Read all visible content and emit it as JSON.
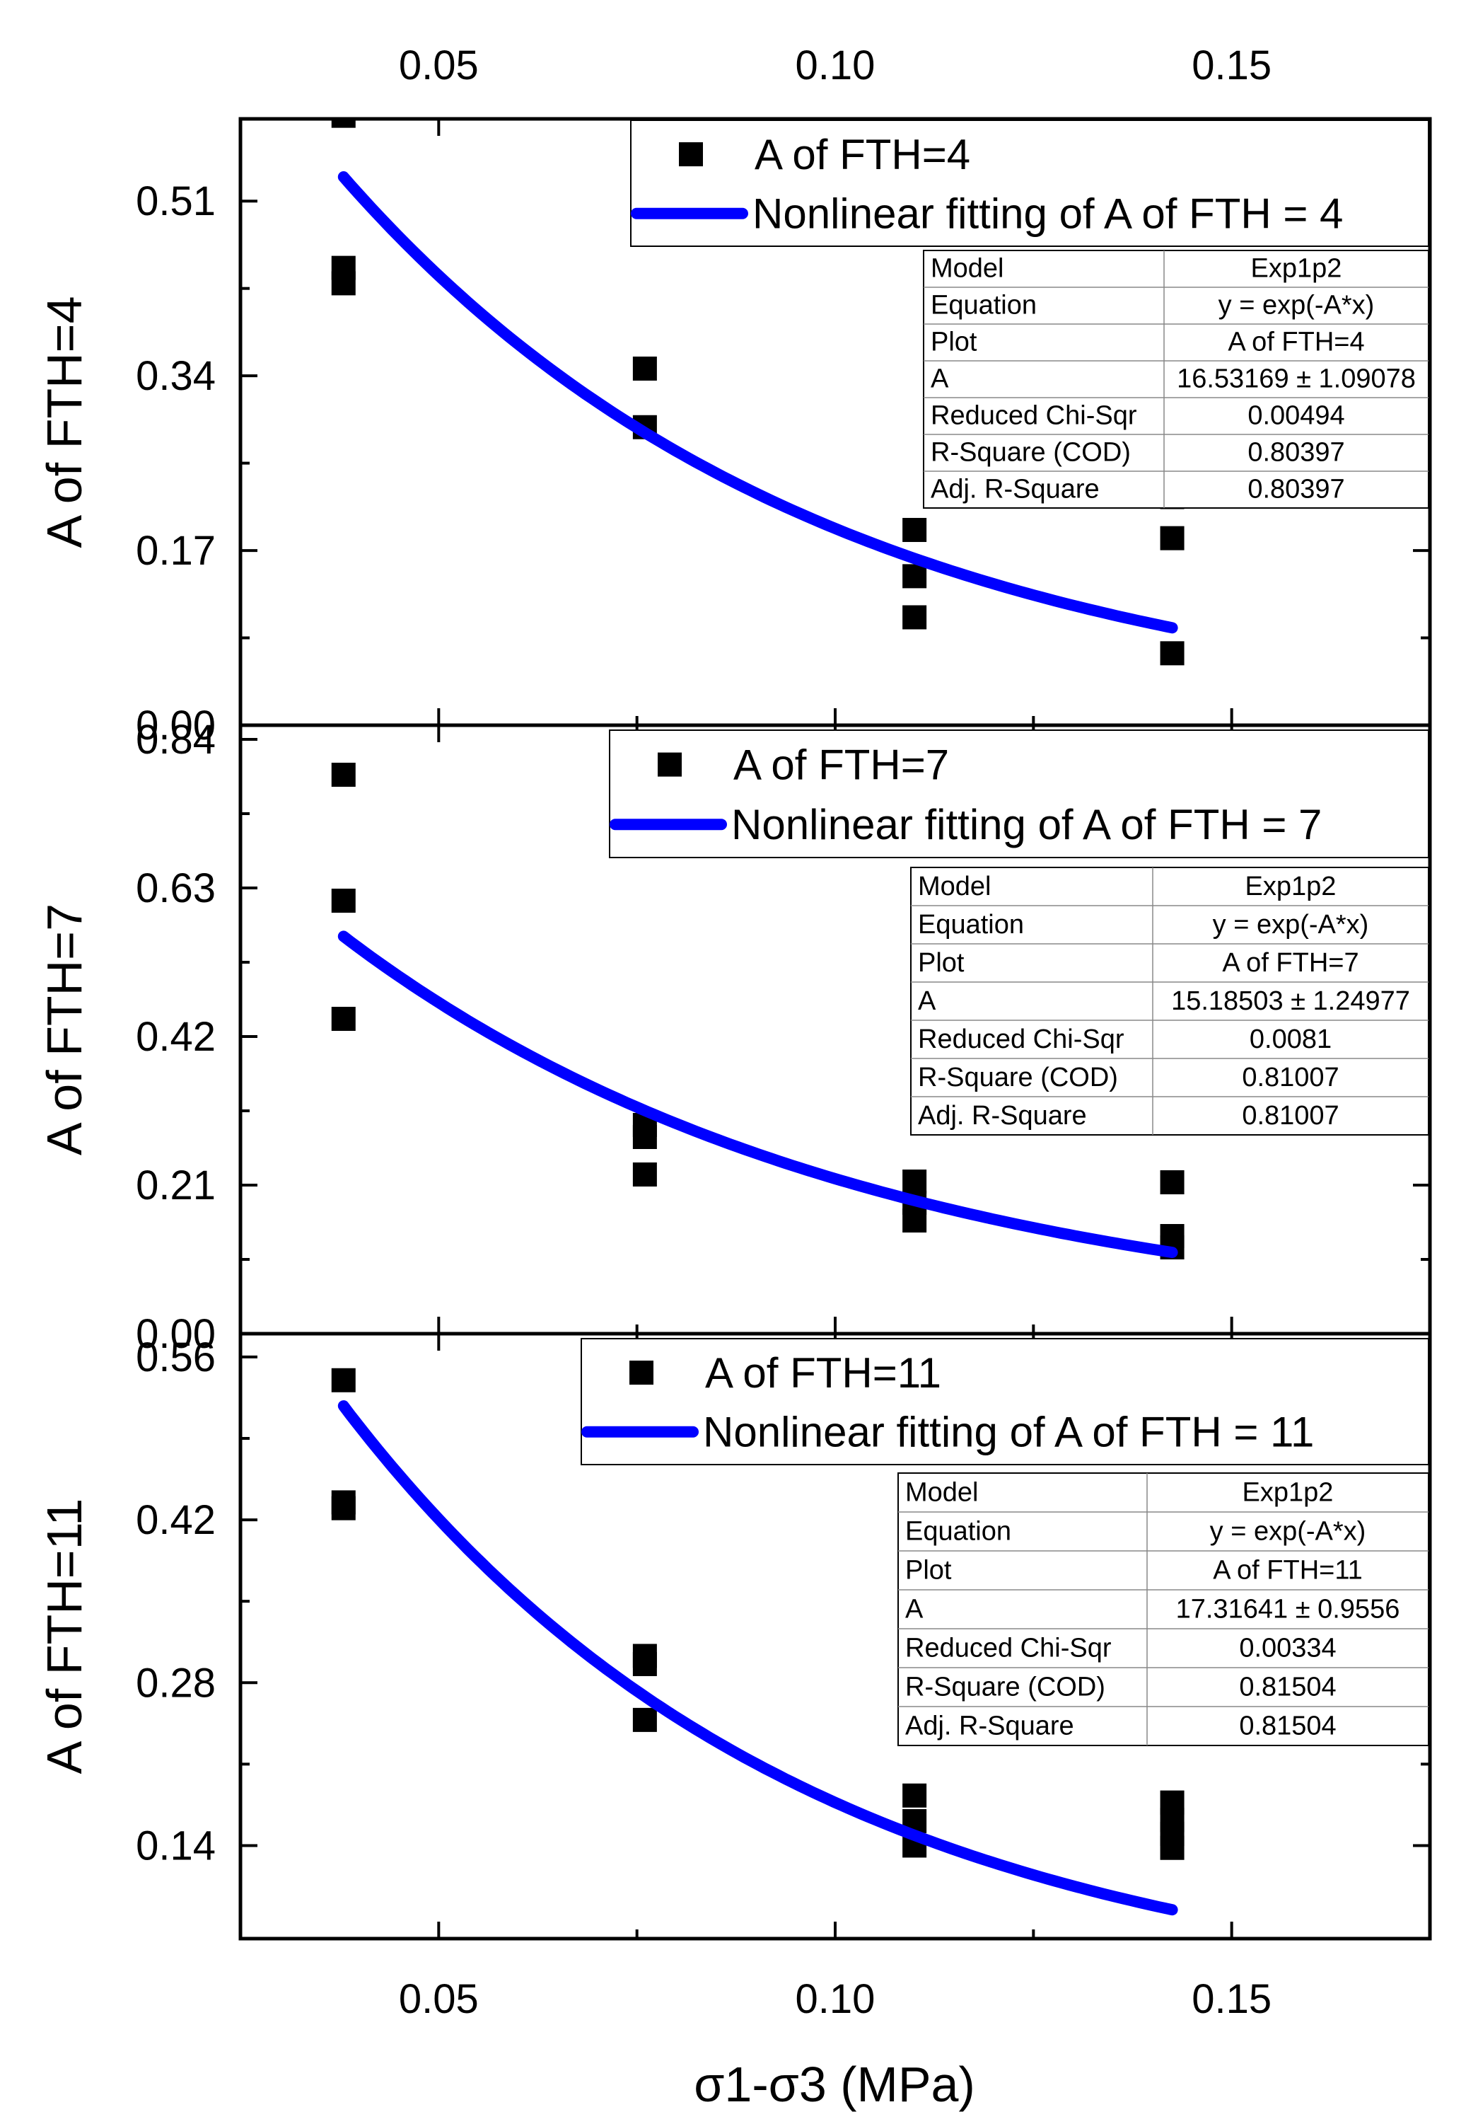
{
  "chart_data": {
    "type": "scatter",
    "x_axis": {
      "label": "σ1-σ3 (MPa)",
      "range": [
        0.025,
        0.175
      ],
      "ticks": [
        "0.05",
        "0.10",
        "0.15"
      ],
      "tick_values": [
        0.05,
        0.1,
        0.15
      ],
      "top_ticks": [
        "0.05",
        "0.10",
        "0.15"
      ]
    },
    "panels": [
      {
        "ylabel": "A of FTH=4",
        "ylim": [
          0,
          0.59
        ],
        "y_ticks": [
          "0.00",
          "0.17",
          "0.34",
          "0.51"
        ],
        "y_tick_values": [
          0,
          0.17,
          0.34,
          0.51
        ],
        "series": [
          {
            "name": "A of FTH=4",
            "kind": "scatter",
            "marker": "square",
            "color": "#000000",
            "points": [
              [
                0.038,
                0.593
              ],
              [
                0.038,
                0.445
              ],
              [
                0.038,
                0.43
              ],
              [
                0.076,
                0.347
              ],
              [
                0.076,
                0.29
              ],
              [
                0.11,
                0.19
              ],
              [
                0.11,
                0.145
              ],
              [
                0.11,
                0.105
              ],
              [
                0.1425,
                0.222
              ],
              [
                0.1425,
                0.182
              ],
              [
                0.1425,
                0.07
              ]
            ]
          },
          {
            "name": "Nonlinear fitting of A of FTH = 4",
            "kind": "fit",
            "color": "#0000ff",
            "A": 16.53169,
            "x_range": [
              0.038,
              0.1425
            ]
          }
        ],
        "stats_table": [
          [
            "Model",
            "Exp1p2"
          ],
          [
            "Equation",
            "y = exp(-A*x)"
          ],
          [
            "Plot",
            "A of FTH=4"
          ],
          [
            "A",
            "16.53169 ± 1.09078"
          ],
          [
            "Reduced Chi-Sqr",
            "0.00494"
          ],
          [
            "R-Square (COD)",
            "0.80397"
          ],
          [
            "Adj. R-Square",
            "0.80397"
          ]
        ]
      },
      {
        "ylabel": "A of FTH=7",
        "ylim": [
          0,
          0.86
        ],
        "y_ticks": [
          "0.00",
          "0.21",
          "0.42",
          "0.63",
          "0.84"
        ],
        "y_tick_values": [
          0,
          0.21,
          0.42,
          0.63,
          0.84
        ],
        "series": [
          {
            "name": "A of FTH=7",
            "kind": "scatter",
            "marker": "square",
            "color": "#000000",
            "points": [
              [
                0.038,
                0.79
              ],
              [
                0.038,
                0.612
              ],
              [
                0.038,
                0.445
              ],
              [
                0.076,
                0.295
              ],
              [
                0.076,
                0.278
              ],
              [
                0.076,
                0.225
              ],
              [
                0.11,
                0.215
              ],
              [
                0.11,
                0.185
              ],
              [
                0.11,
                0.16
              ],
              [
                0.1425,
                0.214
              ],
              [
                0.1425,
                0.138
              ],
              [
                0.1425,
                0.122
              ]
            ]
          },
          {
            "name": "Nonlinear fitting of A of FTH = 7",
            "kind": "fit",
            "color": "#0000ff",
            "A": 15.18503,
            "x_range": [
              0.038,
              0.1425
            ]
          }
        ],
        "stats_table": [
          [
            "Model",
            "Exp1p2"
          ],
          [
            "Equation",
            "y = exp(-A*x)"
          ],
          [
            "Plot",
            "A of FTH=7"
          ],
          [
            "A",
            "15.18503 ± 1.24977"
          ],
          [
            "Reduced Chi-Sqr",
            "0.0081"
          ],
          [
            "R-Square (COD)",
            "0.81007"
          ],
          [
            "Adj. R-Square",
            "0.81007"
          ]
        ]
      },
      {
        "ylabel": "A of FTH=11",
        "ylim": [
          0.06,
          0.58
        ],
        "y_ticks": [
          "0.14",
          "0.28",
          "0.42",
          "0.56"
        ],
        "y_tick_values": [
          0.14,
          0.28,
          0.42,
          0.56
        ],
        "series": [
          {
            "name": "A of FTH=11",
            "kind": "scatter",
            "marker": "square",
            "color": "#000000",
            "points": [
              [
                0.038,
                0.54
              ],
              [
                0.038,
                0.435
              ],
              [
                0.038,
                0.43
              ],
              [
                0.076,
                0.303
              ],
              [
                0.076,
                0.296
              ],
              [
                0.076,
                0.248
              ],
              [
                0.11,
                0.183
              ],
              [
                0.11,
                0.161
              ],
              [
                0.11,
                0.14
              ],
              [
                0.1425,
                0.177
              ],
              [
                0.1425,
                0.162
              ],
              [
                0.1425,
                0.15
              ],
              [
                0.1425,
                0.138
              ]
            ]
          },
          {
            "name": "Nonlinear fitting of A of FTH = 11",
            "kind": "fit",
            "color": "#0000ff",
            "A": 17.31641,
            "x_range": [
              0.038,
              0.1425
            ]
          }
        ],
        "stats_table": [
          [
            "Model",
            "Exp1p2"
          ],
          [
            "Equation",
            "y = exp(-A*x)"
          ],
          [
            "Plot",
            "A of FTH=11"
          ],
          [
            "A",
            "17.31641 ± 0.9556"
          ],
          [
            "Reduced Chi-Sqr",
            "0.00334"
          ],
          [
            "R-Square (COD)",
            "0.81504"
          ],
          [
            "Adj. R-Square",
            "0.81504"
          ]
        ]
      }
    ]
  }
}
